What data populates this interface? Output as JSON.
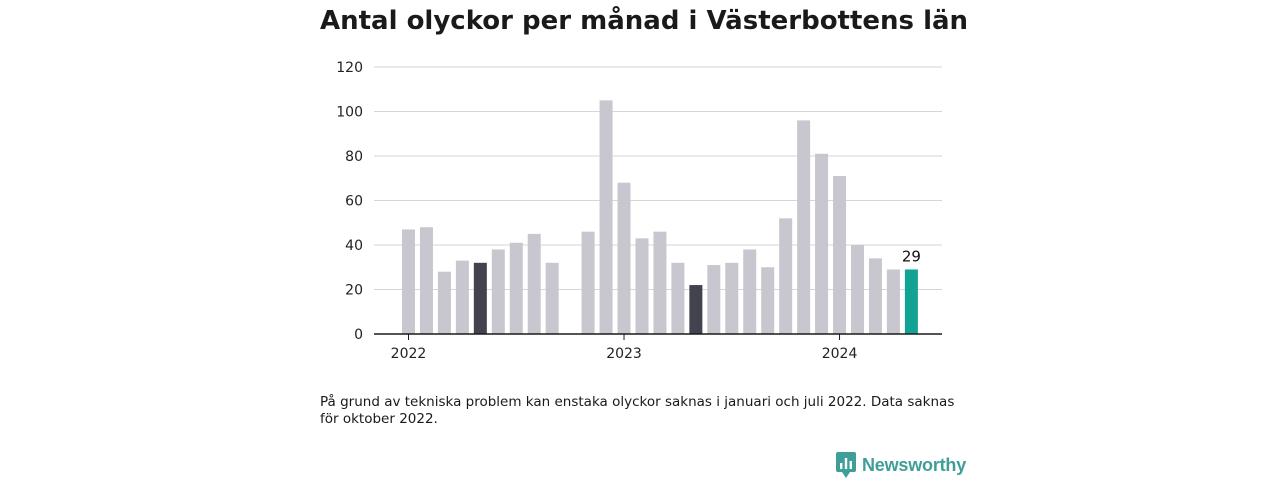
{
  "title": "Antal olyckor per månad i Västerbottens län",
  "footnote": "På grund av tekniska problem kan enstaka olyckor saknas i januari och juli 2022. Data saknas för oktober 2022.",
  "brand": {
    "name": "Newsworthy",
    "icon": "newsworthy-logo-icon",
    "color": "#3f9e98"
  },
  "colors": {
    "bar_default": "#c8c7cf",
    "bar_highlight": "#43424f",
    "bar_current": "#12a395",
    "grid": "#d6d6d6",
    "axis": "#1a1a1a"
  },
  "chart_data": {
    "type": "bar",
    "title": "Antal olyckor per månad i Västerbottens län",
    "xlabel": "",
    "ylabel": "",
    "ylim": [
      0,
      120
    ],
    "yticks": [
      0,
      20,
      40,
      60,
      80,
      100,
      120
    ],
    "grid": true,
    "x_ticks": [
      {
        "label": "2022",
        "month": "2022-01"
      },
      {
        "label": "2023",
        "month": "2023-01"
      },
      {
        "label": "2024",
        "month": "2024-01"
      }
    ],
    "categories": [
      "2022-01",
      "2022-02",
      "2022-03",
      "2022-04",
      "2022-05",
      "2022-06",
      "2022-07",
      "2022-08",
      "2022-09",
      "2022-10",
      "2022-11",
      "2022-12",
      "2023-01",
      "2023-02",
      "2023-03",
      "2023-04",
      "2023-05",
      "2023-06",
      "2023-07",
      "2023-08",
      "2023-09",
      "2023-10",
      "2023-11",
      "2023-12",
      "2024-01",
      "2024-02",
      "2024-03",
      "2024-04",
      "2024-05"
    ],
    "values": [
      47,
      48,
      28,
      33,
      32,
      38,
      41,
      45,
      32,
      null,
      46,
      105,
      68,
      43,
      46,
      32,
      22,
      31,
      32,
      38,
      30,
      52,
      96,
      81,
      71,
      40,
      34,
      29,
      29
    ],
    "highlighted": [
      "2022-05",
      "2023-05"
    ],
    "current": "2024-05",
    "value_labels": [
      {
        "category": "2024-05",
        "text": "29"
      }
    ]
  }
}
